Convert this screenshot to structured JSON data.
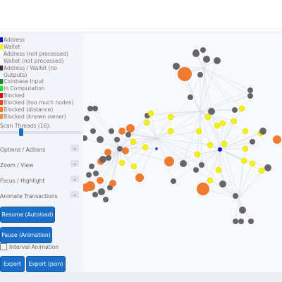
{
  "legend": [
    {
      "label": "Address",
      "color": "#1010c8"
    },
    {
      "label": "Wallet",
      "color": "#f2f20a"
    },
    {
      "label": "Address (not processed)",
      "color": "#ffffff"
    },
    {
      "label": "Wallet (not processed)",
      "color": "#ffffff"
    },
    {
      "label": "Address / Wallet (no Outputs)",
      "color": "#333333"
    },
    {
      "label": "Coinbase Input",
      "color": "#1a8a1a"
    },
    {
      "label": "In Computation",
      "color": "#22e822"
    },
    {
      "label": "Blocked",
      "color": "#e01010"
    },
    {
      "label": "Blocked (too much nodes)",
      "color": "#f04a10"
    },
    {
      "label": "Blocked (distance)",
      "color": "#f07a20"
    },
    {
      "label": "Blocked (known owner)",
      "color": "#f09040"
    }
  ],
  "scan_threads": "Scan Threads (16):",
  "sections": [
    "Options / Actions",
    "Zoom / View",
    "Focus / Highlight",
    "Animate Transactions"
  ],
  "buttons": {
    "resume": "Resume (Autoload)",
    "pause": "Pause (Animation)",
    "interval": "Interval Animation",
    "export": "Export",
    "export_json": "Export (json)"
  }
}
